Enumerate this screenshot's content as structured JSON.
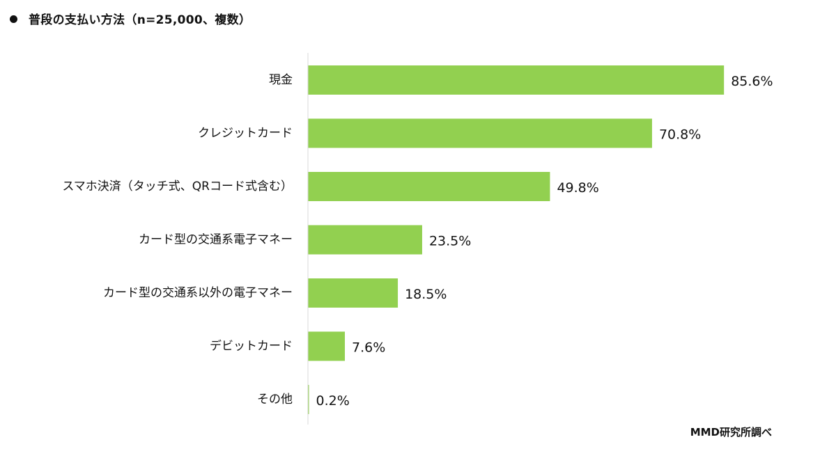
{
  "chart_data": {
    "type": "bar",
    "orientation": "horizontal",
    "title": "普段の支払い方法（n=25,000、複数）",
    "categories": [
      "現金",
      "クレジットカード",
      "スマホ決済（タッチ式、QRコード式含む）",
      "カード型の交通系電子マネー",
      "カード型の交通系以外の電子マネー",
      "デビットカード",
      "その他"
    ],
    "values": [
      85.6,
      70.8,
      49.8,
      23.5,
      18.5,
      7.6,
      0.2
    ],
    "value_labels": [
      "85.6%",
      "70.8%",
      "49.8%",
      "23.5%",
      "18.5%",
      "7.6%",
      "0.2%"
    ],
    "unit": "%",
    "xlim": [
      0,
      86
    ],
    "grid": false,
    "legend": "none",
    "bar_color": "#92d050",
    "axis_color": "#d9d9d9",
    "source": "MMD研究所調べ"
  }
}
